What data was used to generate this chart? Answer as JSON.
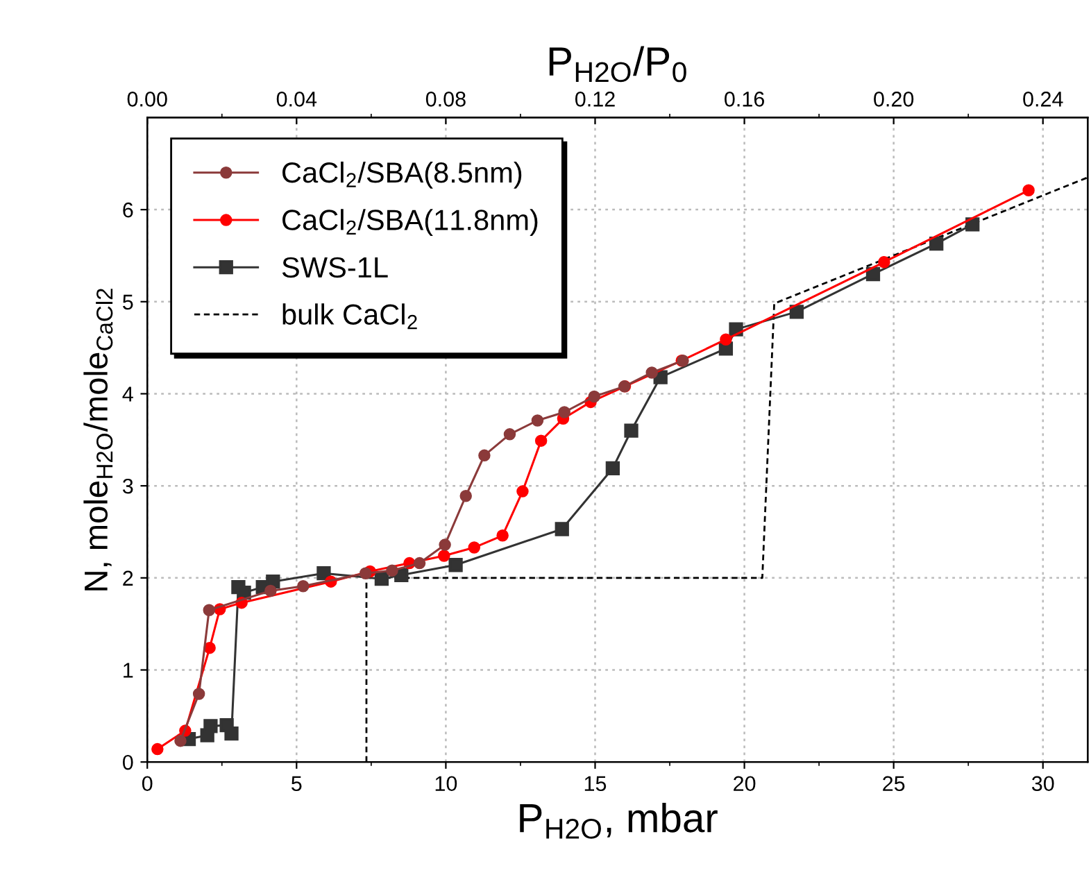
{
  "chart_data": {
    "type": "line",
    "xlabel": "P$_{H2O}$, mbar",
    "ylabel": "N, mole$_{H2O}$/mole$_{CaCl2}$",
    "x2label": "P$_{H2O}$/P$_{0}$",
    "xlim": [
      0,
      31.5
    ],
    "xticks": [
      0,
      {
        "value": 2.5,
        "label": null
      },
      5,
      {
        "value": 7.5,
        "label": null
      },
      10,
      {
        "value": 12.5,
        "label": null
      },
      15,
      {
        "value": 17.5,
        "label": null
      },
      20,
      {
        "value": 22.5,
        "label": null
      },
      25,
      {
        "value": 27.5,
        "label": null
      },
      30
    ],
    "ylim": [
      0,
      7
    ],
    "yticks": [
      0,
      1,
      2,
      3,
      4,
      5,
      6
    ],
    "x2lim": [
      0,
      0.252
    ],
    "x2ticks": [
      {
        "value": 0,
        "label": "0.00"
      },
      {
        "value": 0.02,
        "label": null
      },
      {
        "value": 0.04,
        "label": "0.04"
      },
      {
        "value": 0.06,
        "label": null
      },
      {
        "value": 0.08,
        "label": "0.08"
      },
      {
        "value": 0.1,
        "label": null
      },
      {
        "value": 0.12,
        "label": "0.12"
      },
      {
        "value": 0.14,
        "label": null
      },
      {
        "value": 0.16,
        "label": "0.16"
      },
      {
        "value": 0.18,
        "label": null
      },
      {
        "value": 0.2,
        "label": "0.20"
      },
      {
        "value": 0.22,
        "label": null
      },
      {
        "value": 0.24,
        "label": "0.24"
      }
    ],
    "grid": true,
    "legend": "top left",
    "series": [
      {
        "name": "CaCl$_{2}$/SBA(8.5nm)",
        "color": "#8b3a3a",
        "marker": "circle",
        "line_style": "solid",
        "x": [
          1.11,
          1.73,
          2.07,
          4.13,
          5.22,
          7.31,
          8.2,
          9.12,
          9.97,
          10.67,
          11.29,
          12.14,
          13.07,
          13.97,
          14.97,
          15.98,
          16.9,
          17.94
        ],
        "values": [
          0.23,
          0.74,
          1.65,
          1.86,
          1.91,
          2.05,
          2.08,
          2.16,
          2.36,
          2.89,
          3.33,
          3.56,
          3.71,
          3.8,
          3.97,
          4.08,
          4.23,
          4.36
        ]
      },
      {
        "name": "CaCl$_{2}$/SBA(11.8nm)",
        "color": "#ff0000",
        "marker": "circle",
        "line_style": "solid",
        "x": [
          0.34,
          1.27,
          2.09,
          2.43,
          3.16,
          6.15,
          7.46,
          8.78,
          9.94,
          10.95,
          11.9,
          12.57,
          13.19,
          13.93,
          14.85,
          16.0,
          17.9,
          19.38,
          24.68,
          29.52
        ],
        "values": [
          0.14,
          0.34,
          1.24,
          1.66,
          1.73,
          1.96,
          2.07,
          2.16,
          2.24,
          2.33,
          2.46,
          2.94,
          3.49,
          3.73,
          3.91,
          4.08,
          4.36,
          4.59,
          5.43,
          6.21
        ]
      },
      {
        "name": "SWS-1L",
        "color": "#333333",
        "marker": "square",
        "line_style": "solid",
        "x": [
          1.39,
          2.01,
          2.12,
          2.66,
          2.82,
          3.05,
          3.24,
          3.87,
          4.21,
          5.91,
          7.85,
          8.51,
          10.33,
          13.89,
          15.59,
          16.21,
          17.19,
          19.38,
          19.72,
          21.75,
          24.31,
          26.43,
          27.64
        ],
        "values": [
          0.25,
          0.29,
          0.39,
          0.4,
          0.31,
          1.9,
          1.84,
          1.9,
          1.96,
          2.05,
          1.99,
          2.03,
          2.14,
          2.53,
          3.19,
          3.6,
          4.18,
          4.49,
          4.7,
          4.89,
          5.3,
          5.63,
          5.84
        ]
      },
      {
        "name": "bulk CaCl$_{2}$",
        "color": "#000000",
        "marker": "none",
        "line_style": "dashed",
        "x": [
          7.34,
          7.34,
          20.6,
          21.0,
          31.5
        ],
        "values": [
          0,
          2.0,
          2.0,
          4.98,
          6.35
        ]
      }
    ]
  }
}
